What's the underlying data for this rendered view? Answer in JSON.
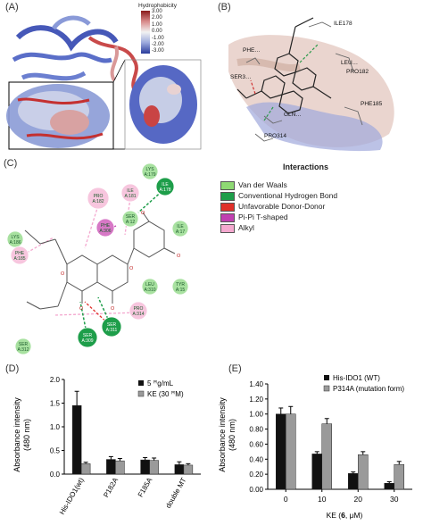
{
  "panels": {
    "A": {
      "letter": "(A)",
      "colorbar": {
        "title": "Hydrophobicity",
        "ticks": [
          "3.00",
          "2.00",
          "1.00",
          "0.00",
          "-1.00",
          "-2.00",
          "-3.00"
        ]
      }
    },
    "B": {
      "letter": "(B)",
      "residues": [
        "ILE178",
        "PHE…",
        "LEU…",
        "PRO182",
        "SER3…",
        "GLN…",
        "PHE185",
        "PRO314"
      ]
    },
    "C": {
      "letter": "(C)",
      "legend": {
        "title": "Interactions",
        "items": [
          {
            "label": "Van der Waals",
            "color": "#8ed973"
          },
          {
            "label": "Conventional Hydrogen Bond",
            "color": "#1e9e4a"
          },
          {
            "label": "Unfavorable Donor-Donor",
            "color": "#e0302a"
          },
          {
            "label": "Pi-Pi T-shaped",
            "color": "#c040b0"
          },
          {
            "label": "Alkyl",
            "color": "#f4a8cf"
          }
        ]
      },
      "residues": [
        {
          "id": "pro182",
          "l1": "PRO",
          "l2": "A:182",
          "fill": "#f7c6de"
        },
        {
          "id": "ile181",
          "l1": "ILE",
          "l2": "A:181",
          "fill": "#f7c6de"
        },
        {
          "id": "lys179",
          "l1": "LYS",
          "l2": "A:179",
          "fill": "#a8e1a0"
        },
        {
          "id": "phe306",
          "l1": "PHE",
          "l2": "A:306",
          "fill": "#d778c6"
        },
        {
          "id": "ile178",
          "l1": "ILE",
          "l2": "A:178",
          "fill": "#1e9e4a"
        },
        {
          "id": "lys186",
          "l1": "LYS",
          "l2": "A:186",
          "fill": "#a8e1a0"
        },
        {
          "id": "ser12",
          "l1": "SER",
          "l2": "A:12",
          "fill": "#a8e1a0"
        },
        {
          "id": "ile17",
          "l1": "ILE",
          "l2": "A:17",
          "fill": "#a8e1a0"
        },
        {
          "id": "phe185",
          "l1": "PHE",
          "l2": "A:185",
          "fill": "#f7c6de"
        },
        {
          "id": "leu310",
          "l1": "LEU",
          "l2": "A:310",
          "fill": "#a8e1a0"
        },
        {
          "id": "tyr15",
          "l1": "TYR",
          "l2": "A:15",
          "fill": "#a8e1a0"
        },
        {
          "id": "pro314",
          "l1": "PRO",
          "l2": "A:314",
          "fill": "#f7c6de"
        },
        {
          "id": "ser309",
          "l1": "SER",
          "l2": "A:309",
          "fill": "#1e9e4a"
        },
        {
          "id": "ser311",
          "l1": "SER",
          "l2": "A:311",
          "fill": "#1e9e4a"
        },
        {
          "id": "ser312",
          "l1": "SER",
          "l2": "A:312",
          "fill": "#a8e1a0"
        }
      ]
    },
    "D": {
      "letter": "(D)",
      "ylabel": "Absorbance intensity",
      "ylabel2": "(480 nm)",
      "legend": [
        "5 ꟸg/mL",
        "KE (30 ꟸM)"
      ],
      "xticks": [
        "His-IDO1(wt)",
        "P182A",
        "F185A",
        "double MT"
      ],
      "yticks": [
        "0.0",
        "0.5",
        "1.0",
        "1.5",
        "2.0"
      ]
    },
    "E": {
      "letter": "(E)",
      "ylabel": "Absorbance intensity",
      "ylabel2": "(480 nm)",
      "legend": [
        "His-IDO1  (WT)",
        "P314A  (mutation form)"
      ],
      "xticks": [
        "0",
        "10",
        "20",
        "30"
      ],
      "xlabel_pre": "KE (",
      "xlabel_bold": "6",
      "xlabel_post": ", μM)",
      "yticks": [
        "0.00",
        "0.20",
        "0.40",
        "0.60",
        "0.80",
        "1.00",
        "1.20",
        "1.40"
      ]
    }
  },
  "chart_data": [
    {
      "type": "bar",
      "panel": "D",
      "ylabel": "Absorbance intensity (480 nm)",
      "ylim": [
        0,
        2.0
      ],
      "categories": [
        "His-IDO1(wt)",
        "P182A",
        "F185A",
        "double MT"
      ],
      "series": [
        {
          "name": "5 ꟸg/mL",
          "color": "#111111",
          "values": [
            1.45,
            0.31,
            0.3,
            0.2
          ],
          "errors": [
            0.3,
            0.06,
            0.05,
            0.06
          ]
        },
        {
          "name": "KE (30 ꟸM)",
          "color": "#9a9a9a",
          "values": [
            0.22,
            0.28,
            0.29,
            0.19
          ],
          "errors": [
            0.03,
            0.05,
            0.05,
            0.03
          ]
        }
      ]
    },
    {
      "type": "bar",
      "panel": "E",
      "ylabel": "Absorbance intensity (480 nm)",
      "xlabel": "KE (6, μM)",
      "ylim": [
        0,
        1.4
      ],
      "categories": [
        "0",
        "10",
        "20",
        "30"
      ],
      "series": [
        {
          "name": "His-IDO1  (WT)",
          "color": "#111111",
          "values": [
            1.0,
            0.47,
            0.21,
            0.08
          ],
          "errors": [
            0.08,
            0.03,
            0.02,
            0.02
          ]
        },
        {
          "name": "P314A  (mutation form)",
          "color": "#9a9a9a",
          "values": [
            1.0,
            0.87,
            0.46,
            0.33
          ],
          "errors": [
            0.1,
            0.07,
            0.04,
            0.04
          ]
        }
      ]
    }
  ]
}
